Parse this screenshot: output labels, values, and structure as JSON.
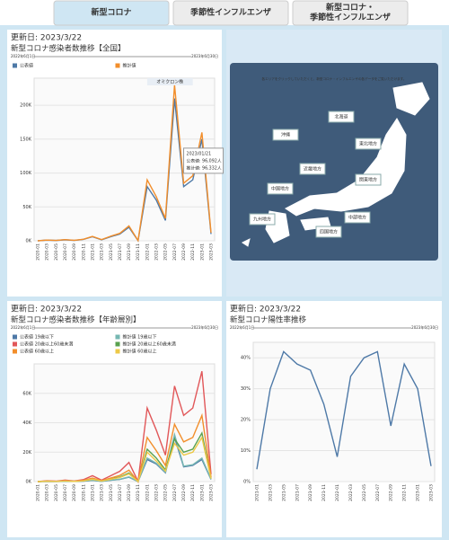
{
  "tabs": [
    {
      "lines": [
        "新型コロナ"
      ]
    },
    {
      "lines": [
        "季節性インフルエンザ"
      ]
    },
    {
      "lines": [
        "新型コロナ・",
        "季節性インフルエンザ"
      ]
    }
  ],
  "map": {
    "instruction": "各エリアをクリックしていただくと、新型コロナ・インフルエンザの各データをご覧いただけます。",
    "regions": [
      "北海道",
      "東北地方",
      "関東地方",
      "中部地方",
      "近畿地方",
      "中国地方",
      "四国地方",
      "九州地方",
      "沖縄"
    ]
  },
  "chart_data": [
    {
      "type": "line",
      "updated": "更新日: 2023/3/22",
      "title": "新型コロナ感染者数推移【全国】",
      "range_start": "2022年6月1日",
      "range_end": "2023年6月30日",
      "categories": [
        "2020-01",
        "2020-03",
        "2020-05",
        "2020-07",
        "2020-09",
        "2020-11",
        "2021-01",
        "2021-03",
        "2021-05",
        "2021-07",
        "2021-09",
        "2021-11",
        "2022-01",
        "2022-03",
        "2022-05",
        "2022-07",
        "2022-09",
        "2022-11",
        "2023-01",
        "2023-03"
      ],
      "series": [
        {
          "name": "公表値",
          "color": "#4e79a7",
          "values": [
            0,
            1000,
            500,
            1500,
            600,
            2000,
            6000,
            1500,
            6000,
            10000,
            20000,
            200,
            80000,
            60000,
            30000,
            210000,
            80000,
            90000,
            150000,
            10000
          ]
        },
        {
          "name": "推計値",
          "color": "#f28e2b",
          "values": [
            0,
            1100,
            600,
            1700,
            700,
            2300,
            6500,
            1800,
            6800,
            11000,
            22000,
            300,
            90000,
            65000,
            33000,
            230000,
            85000,
            96000,
            160000,
            12000
          ]
        }
      ],
      "ylim": [
        0,
        240000
      ],
      "yticks": [
        {
          "value": 0,
          "label": "0K"
        },
        {
          "value": 50000,
          "label": "50K"
        },
        {
          "value": 100000,
          "label": "100K"
        },
        {
          "value": 150000,
          "label": "150K"
        },
        {
          "value": 200000,
          "label": "200K"
        }
      ],
      "annotations": [
        "オミクロン株"
      ],
      "tooltip": [
        "2023/01/21",
        "公表値: 96,092人",
        "推計値: 96,332人"
      ]
    },
    {
      "type": "line",
      "updated": "更新日: 2023/3/22",
      "title": "新型コロナ感染者数推移【年齢層別】",
      "range_start": "2022年6月1日",
      "range_end": "2023年6月30日",
      "categories": [
        "2020-01",
        "2020-03",
        "2020-05",
        "2020-07",
        "2020-09",
        "2020-11",
        "2021-01",
        "2021-03",
        "2021-05",
        "2021-07",
        "2021-09",
        "2021-11",
        "2022-01",
        "2022-03",
        "2022-05",
        "2022-07",
        "2022-09",
        "2022-11",
        "2023-01",
        "2023-03"
      ],
      "series": [
        {
          "name": "公表値 19歳以下",
          "color": "#4e79a7",
          "values": [
            0,
            100,
            50,
            200,
            100,
            300,
            800,
            200,
            900,
            1500,
            3000,
            50,
            15000,
            12000,
            6000,
            30000,
            10000,
            11000,
            15000,
            1500
          ]
        },
        {
          "name": "推計値 19歳以下",
          "color": "#76b7b2",
          "values": [
            0,
            110,
            60,
            220,
            110,
            330,
            850,
            220,
            950,
            1600,
            3200,
            60,
            16000,
            12500,
            6300,
            32000,
            10500,
            11500,
            16000,
            1600
          ]
        },
        {
          "name": "公表値 20歳以上60歳未満",
          "color": "#e15759",
          "values": [
            0,
            600,
            300,
            1000,
            400,
            1300,
            4000,
            1000,
            4000,
            7000,
            13000,
            100,
            50000,
            35000,
            18000,
            65000,
            45000,
            50000,
            75000,
            5000
          ]
        },
        {
          "name": "推計値 20歳以上60歳未満",
          "color": "#59a14f",
          "values": [
            0,
            270,
            140,
            450,
            180,
            600,
            1800,
            450,
            1800,
            3100,
            5800,
            50,
            22000,
            16000,
            8000,
            29000,
            20000,
            22000,
            33000,
            2200
          ]
        },
        {
          "name": "公表値 60歳以上",
          "color": "#f28e2b",
          "values": [
            0,
            360,
            180,
            600,
            240,
            800,
            2400,
            600,
            2400,
            4200,
            7800,
            60,
            30000,
            21000,
            11000,
            39000,
            27000,
            30000,
            45000,
            3000
          ]
        },
        {
          "name": "推計値 60歳以上",
          "color": "#edc948",
          "values": [
            0,
            240,
            120,
            400,
            160,
            520,
            1600,
            400,
            1600,
            2800,
            5200,
            40,
            20000,
            14000,
            7200,
            26000,
            18000,
            20000,
            30000,
            2000
          ]
        }
      ],
      "ylim": [
        0,
        80000
      ],
      "yticks": [
        {
          "value": 0,
          "label": "0K"
        },
        {
          "value": 20000,
          "label": "20K"
        },
        {
          "value": 40000,
          "label": "40K"
        },
        {
          "value": 60000,
          "label": "60K"
        }
      ]
    },
    {
      "type": "line",
      "updated": "更新日: 2023/3/22",
      "title": "新型コロナ陽性率推移",
      "range_start": "2022年6月1日",
      "range_end": "2023年6月30日",
      "categories": [
        "2021-01",
        "2021-03",
        "2021-05",
        "2021-07",
        "2021-09",
        "2021-11",
        "2022-01",
        "2022-03",
        "2022-05",
        "2022-07",
        "2022-09",
        "2022-11",
        "2023-01",
        "2023-03"
      ],
      "series": [
        {
          "name": "陽性率",
          "color": "#4e79a7",
          "values": [
            4,
            30,
            42,
            38,
            36,
            25,
            8,
            34,
            40,
            42,
            18,
            38,
            30,
            5
          ]
        }
      ],
      "ylim": [
        0,
        45
      ],
      "yticks": [
        {
          "value": 0,
          "label": "0%"
        },
        {
          "value": 10,
          "label": "10%"
        },
        {
          "value": 20,
          "label": "20%"
        },
        {
          "value": 30,
          "label": "30%"
        },
        {
          "value": 40,
          "label": "40%"
        }
      ]
    }
  ]
}
